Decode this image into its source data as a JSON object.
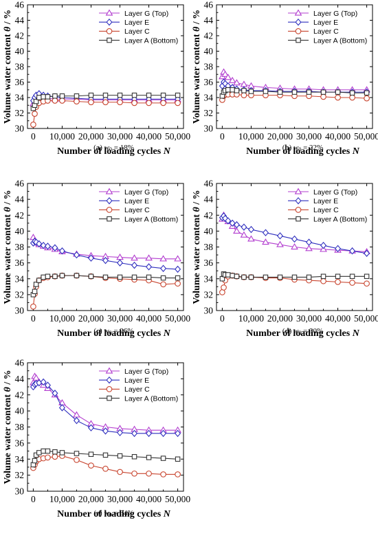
{
  "colors": {
    "layer_g": "#b23ccf",
    "layer_e": "#2e2ebe",
    "layer_c": "#c8442e",
    "layer_a": "#333333"
  },
  "chart_data": [
    {
      "type": "line",
      "caption": {
        "letter": "(a)",
        "var": "w",
        "sub": "0",
        "value": " = 18%"
      },
      "xlabel": {
        "text": "Number of loading cycles ",
        "var": "N"
      },
      "ylabel": {
        "text": "Volume water content ",
        "var": "θ",
        "unit": " / %"
      },
      "xlim": [
        -2000,
        52000
      ],
      "ylim": [
        30,
        46
      ],
      "xticks": [
        "0",
        "10,000",
        "20,000",
        "30,000",
        "40,000",
        "50,000"
      ],
      "yticks": [
        "30",
        "32",
        "34",
        "36",
        "38",
        "40",
        "42",
        "44",
        "46"
      ],
      "legend": [
        "Layer G (Top)",
        "Layer E",
        "Layer C",
        "Layer A (Bottom)"
      ],
      "series": [
        {
          "name": "Layer G (Top)",
          "x": [
            0,
            500,
            1000,
            2000,
            3500,
            5000,
            7500,
            10000,
            15000,
            20000,
            25000,
            30000,
            35000,
            40000,
            45000,
            50000
          ],
          "y": [
            33.2,
            33.5,
            33.7,
            33.8,
            34.0,
            33.9,
            33.8,
            33.8,
            33.8,
            33.7,
            33.7,
            33.7,
            33.7,
            33.7,
            33.7,
            33.7
          ]
        },
        {
          "name": "Layer E",
          "x": [
            0,
            500,
            1000,
            2000,
            3500,
            5000,
            7500,
            10000,
            15000,
            20000,
            25000,
            30000,
            35000,
            40000,
            45000,
            50000
          ],
          "y": [
            33.6,
            34.0,
            34.3,
            34.5,
            34.3,
            34.2,
            34.1,
            34.0,
            33.9,
            33.8,
            33.8,
            33.8,
            33.8,
            33.8,
            33.8,
            33.8
          ]
        },
        {
          "name": "Layer C",
          "x": [
            0,
            500,
            1000,
            2000,
            3500,
            5000,
            7500,
            10000,
            15000,
            20000,
            25000,
            30000,
            35000,
            40000,
            45000,
            50000
          ],
          "y": [
            30.5,
            31.9,
            32.8,
            33.3,
            33.5,
            33.6,
            33.6,
            33.6,
            33.5,
            33.4,
            33.4,
            33.4,
            33.3,
            33.3,
            33.3,
            33.3
          ]
        },
        {
          "name": "Layer A (Bottom)",
          "x": [
            0,
            500,
            1000,
            2000,
            3500,
            5000,
            7500,
            10000,
            15000,
            20000,
            25000,
            30000,
            35000,
            40000,
            45000,
            50000
          ],
          "y": [
            32.6,
            33.0,
            33.5,
            34.0,
            34.1,
            34.1,
            34.2,
            34.2,
            34.2,
            34.3,
            34.3,
            34.3,
            34.3,
            34.3,
            34.3,
            34.3
          ]
        }
      ]
    },
    {
      "type": "line",
      "caption": {
        "letter": "(b)",
        "var": "w",
        "sub": "0",
        "value": " = 22%"
      },
      "xlabel": {
        "text": "Number of loading cycles ",
        "var": "N"
      },
      "ylabel": {
        "text": "Volume water content ",
        "var": "θ",
        "unit": " / %"
      },
      "xlim": [
        -2000,
        52000
      ],
      "ylim": [
        30,
        46
      ],
      "xticks": [
        "0",
        "10,000",
        "20,000",
        "30,000",
        "40,000",
        "50,000"
      ],
      "yticks": [
        "30",
        "32",
        "34",
        "36",
        "38",
        "40",
        "42",
        "44",
        "46"
      ],
      "legend": [
        "Layer G (Top)",
        "Layer E",
        "Layer C",
        "Layer A (Bottom)"
      ],
      "series": [
        {
          "name": "Layer G (Top)",
          "x": [
            0,
            500,
            1000,
            2000,
            3500,
            5000,
            7500,
            10000,
            15000,
            20000,
            25000,
            30000,
            35000,
            40000,
            45000,
            50000
          ],
          "y": [
            36.7,
            37.3,
            37.0,
            36.6,
            36.2,
            35.9,
            35.7,
            35.5,
            35.3,
            35.2,
            35.1,
            35.1,
            35.0,
            35.0,
            35.0,
            35.0
          ]
        },
        {
          "name": "Layer E",
          "x": [
            0,
            500,
            1000,
            2000,
            3500,
            5000,
            7500,
            10000,
            15000,
            20000,
            25000,
            30000,
            35000,
            40000,
            45000,
            50000
          ],
          "y": [
            35.5,
            36.0,
            35.8,
            35.5,
            35.3,
            35.1,
            35.0,
            34.9,
            34.9,
            34.8,
            34.8,
            34.8,
            34.7,
            34.7,
            34.7,
            34.7
          ]
        },
        {
          "name": "Layer C",
          "x": [
            0,
            500,
            1000,
            2000,
            3500,
            5000,
            7500,
            10000,
            15000,
            20000,
            25000,
            30000,
            35000,
            40000,
            45000,
            50000
          ],
          "y": [
            33.7,
            34.2,
            34.4,
            34.4,
            34.4,
            34.4,
            34.3,
            34.3,
            34.3,
            34.3,
            34.2,
            34.2,
            34.1,
            34.0,
            34.0,
            33.9
          ]
        },
        {
          "name": "Layer A (Bottom)",
          "x": [
            0,
            500,
            1000,
            2000,
            3500,
            5000,
            7500,
            10000,
            15000,
            20000,
            25000,
            30000,
            35000,
            40000,
            45000,
            50000
          ],
          "y": [
            34.2,
            34.7,
            34.9,
            35.0,
            35.0,
            34.9,
            34.9,
            34.8,
            34.8,
            34.7,
            34.7,
            34.7,
            34.7,
            34.7,
            34.6,
            34.6
          ]
        }
      ]
    },
    {
      "type": "line",
      "caption": {
        "letter": "(c)",
        "var": "w",
        "sub": "0",
        "value": " = 26%"
      },
      "xlabel": {
        "text": "Number of loading cycles ",
        "var": "N"
      },
      "ylabel": {
        "text": "Volume water content ",
        "var": "θ",
        "unit": " / %"
      },
      "xlim": [
        -2000,
        52000
      ],
      "ylim": [
        30,
        46
      ],
      "xticks": [
        "0",
        "10,000",
        "20,000",
        "30,000",
        "40,000",
        "50,000"
      ],
      "yticks": [
        "30",
        "32",
        "34",
        "36",
        "38",
        "40",
        "42",
        "44",
        "46"
      ],
      "legend": [
        "Layer G (Top)",
        "Layer E",
        "Layer C",
        "Layer A (Bottom)"
      ],
      "series": [
        {
          "name": "Layer G (Top)",
          "x": [
            0,
            500,
            1000,
            2000,
            3500,
            5000,
            7500,
            10000,
            15000,
            20000,
            25000,
            30000,
            35000,
            40000,
            45000,
            50000
          ],
          "y": [
            39.2,
            38.8,
            38.5,
            38.3,
            38.1,
            37.9,
            37.7,
            37.4,
            37.1,
            36.9,
            36.8,
            36.7,
            36.6,
            36.6,
            36.5,
            36.5
          ]
        },
        {
          "name": "Layer E",
          "x": [
            0,
            500,
            1000,
            2000,
            3500,
            5000,
            7500,
            10000,
            15000,
            20000,
            25000,
            30000,
            35000,
            40000,
            45000,
            50000
          ],
          "y": [
            38.5,
            38.7,
            38.6,
            38.4,
            38.2,
            38.1,
            37.9,
            37.5,
            37.0,
            36.6,
            36.3,
            36.0,
            35.7,
            35.5,
            35.3,
            35.2
          ]
        },
        {
          "name": "Layer C",
          "x": [
            0,
            500,
            1000,
            2000,
            3500,
            5000,
            7500,
            10000,
            15000,
            20000,
            25000,
            30000,
            35000,
            40000,
            45000,
            50000
          ],
          "y": [
            30.5,
            32.1,
            33.0,
            33.8,
            34.1,
            34.2,
            34.3,
            34.4,
            34.4,
            34.3,
            34.1,
            34.0,
            33.9,
            33.8,
            33.3,
            33.4
          ]
        },
        {
          "name": "Layer A (Bottom)",
          "x": [
            0,
            500,
            1000,
            2000,
            3500,
            5000,
            7500,
            10000,
            15000,
            20000,
            25000,
            30000,
            35000,
            40000,
            45000,
            50000
          ],
          "y": [
            32.0,
            32.4,
            33.3,
            33.8,
            34.2,
            34.3,
            34.3,
            34.4,
            34.4,
            34.3,
            34.2,
            34.2,
            34.2,
            34.2,
            34.1,
            34.1
          ]
        }
      ]
    },
    {
      "type": "line",
      "caption": {
        "letter": "(d)",
        "var": "w",
        "sub": "0",
        "value": " = 30%"
      },
      "xlabel": {
        "text": "Number of loading cycles ",
        "var": "N"
      },
      "ylabel": {
        "text": "Volume water content ",
        "var": "θ",
        "unit": " / %"
      },
      "xlim": [
        -2000,
        52000
      ],
      "ylim": [
        30,
        46
      ],
      "xticks": [
        "0",
        "10,000",
        "20,000",
        "30,000",
        "40,000",
        "50,000"
      ],
      "yticks": [
        "30",
        "32",
        "34",
        "36",
        "38",
        "40",
        "42",
        "44",
        "46"
      ],
      "legend": [
        "Layer G (Top)",
        "Layer E",
        "Layer C",
        "Layer A (Bottom)"
      ],
      "series": [
        {
          "name": "Layer G (Top)",
          "x": [
            0,
            500,
            1000,
            2000,
            3500,
            5000,
            7500,
            10000,
            15000,
            20000,
            25000,
            30000,
            35000,
            40000,
            45000,
            50000
          ],
          "y": [
            41.5,
            42.0,
            41.7,
            41.2,
            40.6,
            40.0,
            39.5,
            39.0,
            38.6,
            38.3,
            38.0,
            37.8,
            37.7,
            37.6,
            37.5,
            37.4
          ]
        },
        {
          "name": "Layer E",
          "x": [
            0,
            500,
            1000,
            2000,
            3500,
            5000,
            7500,
            10000,
            15000,
            20000,
            25000,
            30000,
            35000,
            40000,
            45000,
            50000
          ],
          "y": [
            41.7,
            41.9,
            41.6,
            41.3,
            41.0,
            40.8,
            40.5,
            40.2,
            39.8,
            39.4,
            39.0,
            38.6,
            38.2,
            37.8,
            37.5,
            37.2
          ]
        },
        {
          "name": "Layer C",
          "x": [
            0,
            500,
            1000,
            2000,
            3500,
            5000,
            7500,
            10000,
            15000,
            20000,
            25000,
            30000,
            35000,
            40000,
            45000,
            50000
          ],
          "y": [
            32.3,
            32.9,
            33.8,
            34.3,
            34.4,
            34.3,
            34.2,
            34.2,
            34.1,
            34.1,
            33.9,
            33.8,
            33.7,
            33.6,
            33.5,
            33.4
          ]
        },
        {
          "name": "Layer A (Bottom)",
          "x": [
            0,
            500,
            1000,
            2000,
            3500,
            5000,
            7500,
            10000,
            15000,
            20000,
            25000,
            30000,
            35000,
            40000,
            45000,
            50000
          ],
          "y": [
            34.0,
            34.6,
            34.5,
            34.5,
            34.4,
            34.3,
            34.2,
            34.2,
            34.2,
            34.2,
            34.2,
            34.2,
            34.3,
            34.3,
            34.3,
            34.3
          ]
        }
      ]
    },
    {
      "type": "line",
      "caption": {
        "letter": "(e)",
        "var": "w",
        "sub": "0",
        "value": " = 34%"
      },
      "xlabel": {
        "text": "Number of loading cycles ",
        "var": "N"
      },
      "ylabel": {
        "text": "Volume water content ",
        "var": "θ",
        "unit": " / %"
      },
      "xlim": [
        -2000,
        52000
      ],
      "ylim": [
        30,
        46
      ],
      "xticks": [
        "0",
        "10,000",
        "20,000",
        "30,000",
        "40,000",
        "50,000"
      ],
      "yticks": [
        "30",
        "32",
        "34",
        "36",
        "38",
        "40",
        "42",
        "44",
        "46"
      ],
      "legend": [
        "Layer G (Top)",
        "Layer E",
        "Layer C",
        "Layer A (Bottom)"
      ],
      "series": [
        {
          "name": "Layer G (Top)",
          "x": [
            0,
            500,
            1000,
            2000,
            3500,
            5000,
            7500,
            10000,
            15000,
            20000,
            25000,
            30000,
            35000,
            40000,
            45000,
            50000
          ],
          "y": [
            43.5,
            44.3,
            44.1,
            43.6,
            43.2,
            42.8,
            42.0,
            41.0,
            39.5,
            38.4,
            38.0,
            37.8,
            37.7,
            37.6,
            37.6,
            37.6
          ]
        },
        {
          "name": "Layer E",
          "x": [
            0,
            500,
            1000,
            2000,
            3500,
            5000,
            7500,
            10000,
            15000,
            20000,
            25000,
            30000,
            35000,
            40000,
            45000,
            50000
          ],
          "y": [
            43.0,
            43.3,
            43.4,
            43.5,
            43.6,
            43.2,
            42.2,
            40.4,
            38.8,
            37.9,
            37.5,
            37.3,
            37.2,
            37.2,
            37.2,
            37.2
          ]
        },
        {
          "name": "Layer C",
          "x": [
            0,
            500,
            1000,
            2000,
            3500,
            5000,
            7500,
            10000,
            15000,
            20000,
            25000,
            30000,
            35000,
            40000,
            45000,
            50000
          ],
          "y": [
            32.9,
            33.3,
            33.7,
            34.0,
            34.1,
            34.2,
            34.3,
            34.4,
            33.9,
            33.2,
            32.8,
            32.4,
            32.2,
            32.2,
            32.1,
            32.1
          ]
        },
        {
          "name": "Layer A (Bottom)",
          "x": [
            0,
            500,
            1000,
            2000,
            3500,
            5000,
            7500,
            10000,
            15000,
            20000,
            25000,
            30000,
            35000,
            40000,
            45000,
            50000
          ],
          "y": [
            33.3,
            33.8,
            34.5,
            34.8,
            35.0,
            35.0,
            34.9,
            34.8,
            34.7,
            34.6,
            34.5,
            34.4,
            34.3,
            34.2,
            34.1,
            34.0
          ]
        }
      ]
    }
  ]
}
